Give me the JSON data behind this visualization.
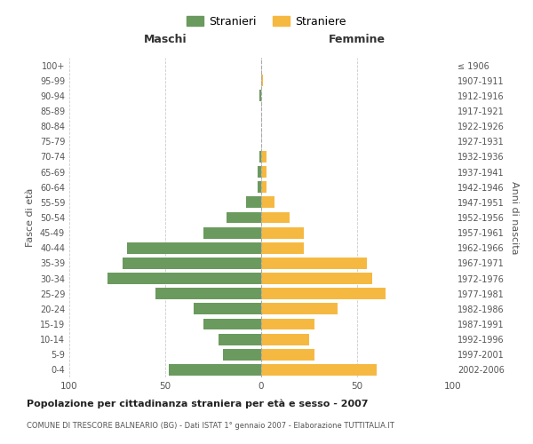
{
  "age_groups": [
    "0-4",
    "5-9",
    "10-14",
    "15-19",
    "20-24",
    "25-29",
    "30-34",
    "35-39",
    "40-44",
    "45-49",
    "50-54",
    "55-59",
    "60-64",
    "65-69",
    "70-74",
    "75-79",
    "80-84",
    "85-89",
    "90-94",
    "95-99",
    "100+"
  ],
  "birth_years": [
    "2002-2006",
    "1997-2001",
    "1992-1996",
    "1987-1991",
    "1982-1986",
    "1977-1981",
    "1972-1976",
    "1967-1971",
    "1962-1966",
    "1957-1961",
    "1952-1956",
    "1947-1951",
    "1942-1946",
    "1937-1941",
    "1932-1936",
    "1927-1931",
    "1922-1926",
    "1917-1921",
    "1912-1916",
    "1907-1911",
    "≤ 1906"
  ],
  "males": [
    48,
    20,
    22,
    30,
    35,
    55,
    80,
    72,
    70,
    30,
    18,
    8,
    2,
    2,
    1,
    0,
    0,
    0,
    1,
    0,
    0
  ],
  "females": [
    60,
    28,
    25,
    28,
    40,
    65,
    58,
    55,
    22,
    22,
    15,
    7,
    3,
    3,
    3,
    0,
    0,
    0,
    0,
    1,
    0
  ],
  "male_color": "#6a9a5e",
  "female_color": "#f5b942",
  "grid_color": "#cccccc",
  "title": "Popolazione per cittadinanza straniera per età e sesso - 2007",
  "subtitle": "COMUNE DI TRESCORE BALNEARIO (BG) - Dati ISTAT 1° gennaio 2007 - Elaborazione TUTTITALIA.IT",
  "xlabel_left": "Maschi",
  "xlabel_right": "Femmine",
  "ylabel_left": "Fasce di età",
  "ylabel_right": "Anni di nascita",
  "legend_male": "Stranieri",
  "legend_female": "Straniere",
  "xlim": 100,
  "bar_height": 0.75
}
